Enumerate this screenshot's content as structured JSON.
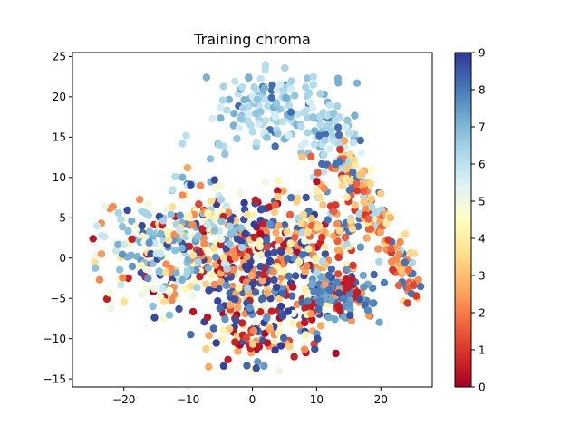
{
  "chart_data": {
    "type": "scatter",
    "title": "Training chroma",
    "xlabel": "",
    "ylabel": "",
    "xlim": [
      -28,
      28
    ],
    "ylim": [
      -16,
      25.5
    ],
    "x_ticks": [
      -20,
      -10,
      0,
      10,
      20
    ],
    "y_ticks": [
      -15,
      -10,
      -5,
      0,
      5,
      10,
      15,
      20,
      25
    ],
    "grid": false,
    "colorbar": {
      "colormap": "RdYlBu",
      "range": [
        0,
        9
      ],
      "ticks": [
        0,
        1,
        2,
        3,
        4,
        5,
        6,
        7,
        8,
        9
      ],
      "stops": [
        "#a50026",
        "#d73027",
        "#f46d43",
        "#fdae61",
        "#fee090",
        "#ffffbf",
        "#e0f3f8",
        "#abd9e9",
        "#74add1",
        "#4575b4",
        "#313695"
      ]
    },
    "regions": [
      {
        "label": "upper arc, light blue",
        "x_range": [
          -5,
          14
        ],
        "y_range": [
          14,
          23.5
        ],
        "value_range": [
          5.6,
          7.2
        ]
      },
      {
        "label": "left wing, light blue/yellow",
        "x_range": [
          -25,
          -10
        ],
        "y_range": [
          -7,
          6
        ],
        "value_range": [
          3.2,
          7.6
        ]
      },
      {
        "label": "dense core, mixed dark blue and red",
        "x_range": [
          -8,
          12
        ],
        "y_range": [
          -10,
          8
        ],
        "value_range": [
          0,
          9
        ]
      },
      {
        "label": "right tail, orange/red",
        "x_range": [
          14,
          25.5
        ],
        "y_range": [
          -5,
          12
        ],
        "value_range": [
          0.8,
          3.6
        ]
      },
      {
        "label": "lower right lobe, medium blue",
        "x_range": [
          8,
          18
        ],
        "y_range": [
          -8,
          -2
        ],
        "value_range": [
          7.2,
          8.6
        ]
      },
      {
        "label": "bottom sparse, red/blue",
        "x_range": [
          -6,
          10
        ],
        "y_range": [
          -14,
          -9
        ],
        "value_range": [
          0,
          9
        ]
      }
    ],
    "points": [
      {
        "x": 2.0,
        "y": 23.4,
        "v": 6.1
      },
      {
        "x": 8.3,
        "y": 21.2,
        "v": 6.4
      },
      {
        "x": 9.5,
        "y": 22.5,
        "v": 6.2
      },
      {
        "x": -4.6,
        "y": 19.6,
        "v": 6.3
      },
      {
        "x": -1.6,
        "y": 21.2,
        "v": 6.1
      },
      {
        "x": 0.3,
        "y": 21.2,
        "v": 6.4
      },
      {
        "x": 12.0,
        "y": 19.0,
        "v": 6.0
      },
      {
        "x": 13.5,
        "y": 17.5,
        "v": 6.2
      },
      {
        "x": -5.2,
        "y": 14.1,
        "v": 6.4
      },
      {
        "x": -10.3,
        "y": 15.2,
        "v": 6.1
      },
      {
        "x": -10.9,
        "y": 14.2,
        "v": 6.2
      },
      {
        "x": 15.0,
        "y": 15.5,
        "v": 6.0
      },
      {
        "x": 17.0,
        "y": 13.0,
        "v": 5.4
      },
      {
        "x": 18.5,
        "y": 11.0,
        "v": 4.5
      },
      {
        "x": 20.0,
        "y": 8.0,
        "v": 3.2
      },
      {
        "x": 21.5,
        "y": 5.0,
        "v": 2.8
      },
      {
        "x": 23.0,
        "y": 2.0,
        "v": 2.2
      },
      {
        "x": 24.3,
        "y": -1.5,
        "v": 1.8
      },
      {
        "x": 25.1,
        "y": -3.4,
        "v": 1.2
      },
      {
        "x": 25.5,
        "y": -4.7,
        "v": 1.0
      },
      {
        "x": -24.8,
        "y": 2.4,
        "v": 0.4
      },
      {
        "x": -23.5,
        "y": 0.5,
        "v": 2.4
      },
      {
        "x": -20.5,
        "y": 4.8,
        "v": 6.2
      },
      {
        "x": -12.4,
        "y": 8.5,
        "v": 6.0
      },
      {
        "x": -12.0,
        "y": 10.1,
        "v": 6.2
      },
      {
        "x": -10.1,
        "y": 11.2,
        "v": 2.6
      },
      {
        "x": -9.6,
        "y": 9.1,
        "v": 8.8
      },
      {
        "x": -6.8,
        "y": -13.5,
        "v": 2.6
      },
      {
        "x": -3.8,
        "y": -12.6,
        "v": 0.5
      },
      {
        "x": 1.8,
        "y": -13.4,
        "v": 7.5
      },
      {
        "x": 4.2,
        "y": -14.0,
        "v": 5.1
      },
      {
        "x": 9.7,
        "y": -11.3,
        "v": 8.6
      },
      {
        "x": -9.6,
        "y": -9.5,
        "v": 8.2
      },
      {
        "x": 18.0,
        "y": -6.5,
        "v": 7.8
      },
      {
        "x": 10.0,
        "y": 9.5,
        "v": 0.3
      },
      {
        "x": 14.0,
        "y": 9.0,
        "v": 3.5
      }
    ]
  }
}
